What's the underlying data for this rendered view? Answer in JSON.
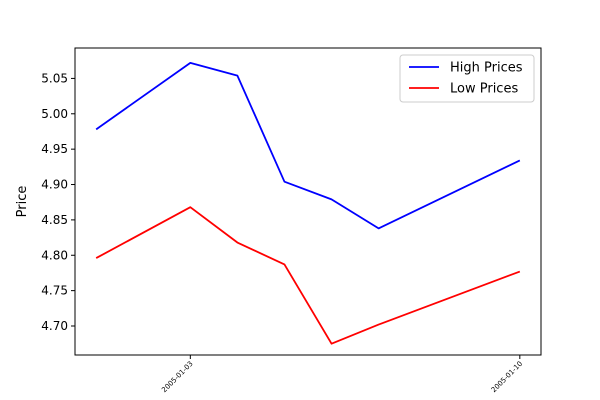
{
  "chart_data": {
    "type": "line",
    "x": [
      "2005-01-01",
      "2005-01-03",
      "2005-01-04",
      "2005-01-05",
      "2005-01-06",
      "2005-01-07",
      "2005-01-10"
    ],
    "xticks": [
      "2005-01-03",
      "2005-01-10"
    ],
    "series": [
      {
        "name": "High Prices",
        "color": "#0000ff",
        "values": [
          4.978,
          5.072,
          5.054,
          4.904,
          4.879,
          4.838,
          4.934
        ]
      },
      {
        "name": "Low Prices",
        "color": "#ff0000",
        "values": [
          4.796,
          4.868,
          4.818,
          4.787,
          4.675,
          4.702,
          4.777
        ]
      }
    ],
    "title": "",
    "xlabel": "",
    "ylabel": "Price",
    "ylim": [
      4.659,
      5.093
    ],
    "yticks": [
      "4.70",
      "4.75",
      "4.80",
      "4.85",
      "4.90",
      "4.95",
      "5.00",
      "5.05"
    ],
    "legend_position": "top-right",
    "grid": false
  }
}
